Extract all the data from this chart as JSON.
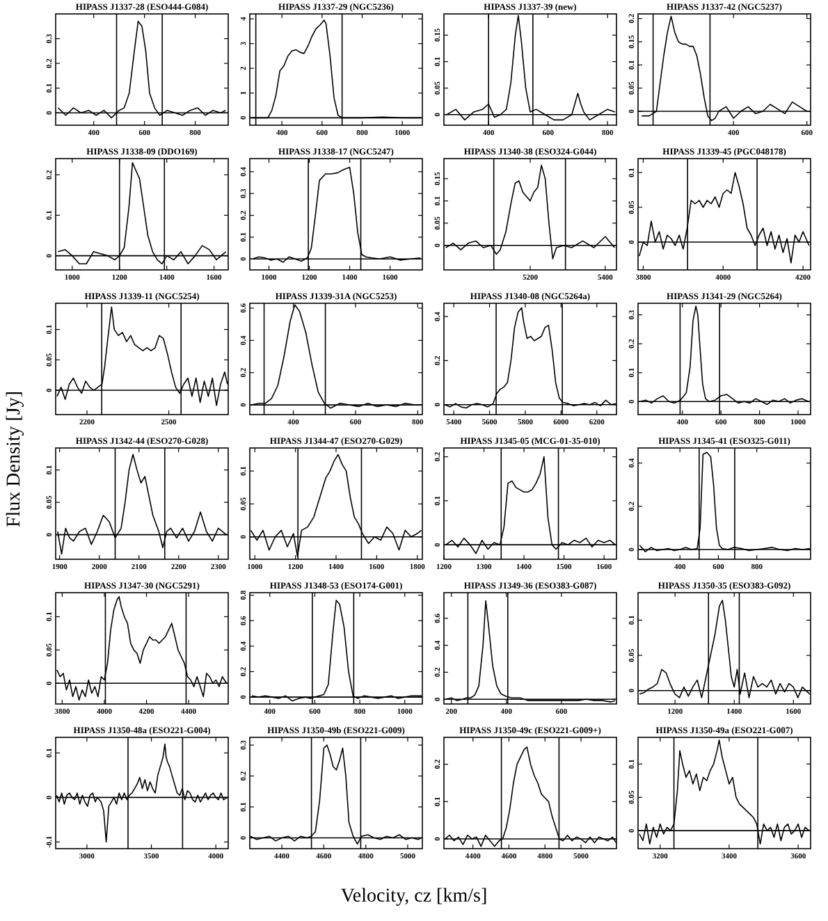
{
  "chart_data": [
    {
      "type": "line",
      "title": "HIPASS J1337-28 (ESO444-G084)",
      "xlim": [
        250,
        930
      ],
      "xticks": [
        400,
        600,
        800
      ],
      "ylim": [
        -0.05,
        0.4
      ],
      "yticks": [
        0,
        0.1,
        0.2,
        0.3
      ],
      "ref_lines": [
        {
          "axis": "x",
          "value": 490
        },
        {
          "axis": "x",
          "value": 670
        },
        {
          "axis": "y",
          "value": 0
        }
      ],
      "color": "#000000",
      "x": [
        260,
        290,
        320,
        350,
        380,
        410,
        440,
        470,
        500,
        520,
        540,
        560,
        575,
        590,
        605,
        620,
        640,
        660,
        690,
        720,
        750,
        780,
        810,
        840,
        870,
        900,
        920
      ],
      "values": [
        0.02,
        -0.01,
        0.02,
        0,
        0.01,
        -0.01,
        0.01,
        -0.02,
        0.01,
        0.02,
        0.08,
        0.25,
        0.37,
        0.35,
        0.25,
        0.08,
        0.02,
        -0.01,
        0.01,
        0,
        -0.01,
        0.01,
        0.02,
        -0.01,
        0.01,
        0,
        0.01
      ]
    },
    {
      "type": "line",
      "title": "HIPASS J1337-29 (NGC5236)",
      "xlim": [
        240,
        1100
      ],
      "xticks": [
        400,
        600,
        800,
        1000
      ],
      "ylim": [
        -0.3,
        4.2
      ],
      "yticks": [
        0,
        1,
        2,
        3,
        4
      ],
      "ref_lines": [
        {
          "axis": "x",
          "value": 270
        },
        {
          "axis": "x",
          "value": 700
        },
        {
          "axis": "y",
          "value": 0
        }
      ],
      "color": "#000000",
      "x": [
        250,
        300,
        330,
        350,
        370,
        390,
        410,
        430,
        450,
        470,
        490,
        510,
        530,
        550,
        570,
        590,
        610,
        620,
        640,
        660,
        680,
        700,
        730,
        800,
        900,
        1000,
        1090
      ],
      "values": [
        0,
        0,
        0,
        0.3,
        0.9,
        1.9,
        2.1,
        2.5,
        2.7,
        2.75,
        2.65,
        2.6,
        2.9,
        3.3,
        3.6,
        3.75,
        3.95,
        3.8,
        2.5,
        0.8,
        0.1,
        0,
        0,
        0,
        0.03,
        0,
        0
      ]
    },
    {
      "type": "line",
      "title": "HIPASS J1337-39 (new)",
      "xlim": [
        250,
        830
      ],
      "xticks": [
        400,
        600,
        800
      ],
      "ylim": [
        -0.02,
        0.19
      ],
      "yticks": [
        0,
        0.05,
        0.1,
        0.15
      ],
      "ref_lines": [
        {
          "axis": "x",
          "value": 400
        },
        {
          "axis": "x",
          "value": 549
        },
        {
          "axis": "y",
          "value": 0
        }
      ],
      "color": "#000000",
      "x": [
        260,
        290,
        320,
        350,
        380,
        400,
        420,
        440,
        460,
        475,
        490,
        500,
        510,
        525,
        540,
        560,
        590,
        620,
        650,
        680,
        700,
        710,
        720,
        740,
        770,
        800,
        825
      ],
      "values": [
        0,
        0.01,
        -0.01,
        0.005,
        0.01,
        0.02,
        -0.005,
        0,
        0.01,
        0.06,
        0.15,
        0.187,
        0.14,
        0.05,
        0.005,
        0.01,
        0,
        -0.01,
        -0.01,
        0,
        0.04,
        0.02,
        0.005,
        -0.01,
        0,
        0.01,
        0.005
      ]
    },
    {
      "type": "line",
      "title": "HIPASS J1337-42 (NGC5237)",
      "xlim": [
        140,
        610
      ],
      "xticks": [
        400,
        600
      ],
      "ylim": [
        -0.03,
        0.21
      ],
      "yticks": [
        0,
        0.05,
        0.1,
        0.15,
        0.2
      ],
      "ref_lines": [
        {
          "axis": "x",
          "value": 181
        },
        {
          "axis": "x",
          "value": 336
        },
        {
          "axis": "y",
          "value": 0
        }
      ],
      "color": "#000000",
      "x": [
        150,
        170,
        190,
        210,
        220,
        230,
        240,
        250,
        260,
        270,
        280,
        290,
        300,
        310,
        320,
        330,
        340,
        350,
        360,
        380,
        400,
        420,
        440,
        460,
        480,
        500,
        520,
        540,
        560,
        580,
        600
      ],
      "values": [
        -0.01,
        -0.01,
        0,
        0.12,
        0.17,
        0.205,
        0.17,
        0.15,
        0.145,
        0.145,
        0.14,
        0.14,
        0.12,
        0.08,
        0.03,
        -0.01,
        -0.02,
        -0.015,
        0,
        0.01,
        -0.015,
        0,
        0.01,
        -0.005,
        0,
        0.015,
        0.005,
        -0.005,
        0.02,
        0.01,
        0
      ]
    },
    {
      "type": "line",
      "title": "HIPASS J1338-09 (DDO169)",
      "xlim": [
        930,
        1660
      ],
      "xticks": [
        1000,
        1200,
        1400,
        1600
      ],
      "ylim": [
        -0.035,
        0.24
      ],
      "yticks": [
        0,
        0.1,
        0.2
      ],
      "ref_lines": [
        {
          "axis": "x",
          "value": 1200
        },
        {
          "axis": "x",
          "value": 1390
        },
        {
          "axis": "y",
          "value": 0
        }
      ],
      "color": "#000000",
      "x": [
        940,
        970,
        1000,
        1030,
        1060,
        1090,
        1120,
        1150,
        1180,
        1200,
        1220,
        1240,
        1255,
        1270,
        1285,
        1300,
        1320,
        1340,
        1360,
        1380,
        1400,
        1430,
        1460,
        1490,
        1520,
        1550,
        1580,
        1610,
        1650
      ],
      "values": [
        0.01,
        0.015,
        0,
        -0.02,
        -0.02,
        0.01,
        0.005,
        0,
        -0.01,
        0,
        0.02,
        0.12,
        0.23,
        0.21,
        0.19,
        0.13,
        0.05,
        0.01,
        -0.01,
        -0.02,
        0,
        -0.01,
        0.01,
        -0.02,
        0,
        0.025,
        0.015,
        -0.01,
        0.01
      ]
    },
    {
      "type": "line",
      "title": "HIPASS J1338-17 (NGC5247)",
      "xlim": [
        905,
        1760
      ],
      "xticks": [
        1000,
        1200,
        1400,
        1600
      ],
      "ylim": [
        -0.05,
        0.46
      ],
      "yticks": [
        0,
        0.1,
        0.2,
        0.3,
        0.4
      ],
      "ref_lines": [
        {
          "axis": "x",
          "value": 1195
        },
        {
          "axis": "x",
          "value": 1455
        },
        {
          "axis": "y",
          "value": 0
        }
      ],
      "color": "#000000",
      "x": [
        920,
        950,
        980,
        1010,
        1040,
        1070,
        1100,
        1130,
        1160,
        1190,
        1210,
        1230,
        1250,
        1280,
        1310,
        1340,
        1370,
        1400,
        1420,
        1440,
        1460,
        1480,
        1510,
        1550,
        1600,
        1650,
        1700,
        1750
      ],
      "values": [
        0,
        0.01,
        0.005,
        -0.005,
        0,
        -0.015,
        0.01,
        0,
        -0.01,
        0.005,
        0.05,
        0.2,
        0.36,
        0.39,
        0.39,
        0.395,
        0.41,
        0.42,
        0.3,
        0.12,
        0.02,
        0.01,
        0.005,
        0,
        0.01,
        -0.005,
        0,
        0.005
      ]
    },
    {
      "type": "line",
      "title": "HIPASS J1340-38 (ESO324-G044)",
      "xlim": [
        4970,
        5430
      ],
      "xticks": [
        5200,
        5400
      ],
      "ylim": [
        -0.055,
        0.195
      ],
      "yticks": [
        0,
        0.05,
        0.1,
        0.15
      ],
      "ref_lines": [
        {
          "axis": "x",
          "value": 5103
        },
        {
          "axis": "x",
          "value": 5294
        },
        {
          "axis": "y",
          "value": 0
        }
      ],
      "color": "#000000",
      "x": [
        4975,
        4995,
        5015,
        5035,
        5055,
        5075,
        5095,
        5110,
        5120,
        5135,
        5150,
        5160,
        5170,
        5180,
        5190,
        5200,
        5210,
        5220,
        5230,
        5240,
        5250,
        5260,
        5270,
        5290,
        5310,
        5340,
        5370,
        5400,
        5425
      ],
      "values": [
        -0.005,
        0.005,
        -0.01,
        0.005,
        0.01,
        -0.005,
        0,
        -0.02,
        -0.01,
        0.03,
        0.1,
        0.14,
        0.145,
        0.12,
        0.11,
        0.1,
        0.12,
        0.13,
        0.18,
        0.15,
        0.05,
        -0.03,
        -0.005,
        0,
        -0.005,
        0.01,
        -0.005,
        0.02,
        -0.005
      ]
    },
    {
      "type": "line",
      "title": "HIPASS J1339-45 (PGC048178)",
      "xlim": [
        3787,
        4219
      ],
      "xticks": [
        3800,
        4000,
        4200
      ],
      "ylim": [
        -0.04,
        0.12
      ],
      "yticks": [
        0,
        0.05,
        0.1
      ],
      "ref_lines": [
        {
          "axis": "x",
          "value": 3911
        },
        {
          "axis": "x",
          "value": 4085
        },
        {
          "axis": "y",
          "value": 0
        }
      ],
      "color": "#000000",
      "x": [
        3790,
        3800,
        3810,
        3820,
        3830,
        3840,
        3850,
        3860,
        3870,
        3880,
        3890,
        3900,
        3910,
        3920,
        3930,
        3940,
        3950,
        3960,
        3970,
        3980,
        3990,
        4000,
        4010,
        4020,
        4030,
        4040,
        4050,
        4060,
        4070,
        4080,
        4090,
        4100,
        4110,
        4120,
        4130,
        4140,
        4150,
        4160,
        4170,
        4180,
        4190,
        4200,
        4215
      ],
      "values": [
        -0.02,
        0,
        -0.005,
        0.03,
        0,
        0.015,
        -0.01,
        0.01,
        0.005,
        -0.005,
        0.01,
        -0.01,
        0.02,
        0.06,
        0.055,
        0.06,
        0.05,
        0.06,
        0.055,
        0.065,
        0.05,
        0.07,
        0.075,
        0.07,
        0.1,
        0.08,
        0.055,
        0.02,
        0.01,
        -0.005,
        0.01,
        0.02,
        -0.005,
        0.015,
        -0.01,
        0.01,
        -0.015,
        0.005,
        -0.03,
        0.01,
        0,
        0.015,
        -0.005
      ]
    },
    {
      "type": "line",
      "title": "HIPASS J1339-11 (NGC5254)",
      "xlim": [
        2085,
        2718
      ],
      "xticks": [
        2200,
        2500
      ],
      "ylim": [
        -0.04,
        0.143
      ],
      "yticks": [
        0,
        0.05,
        0.1
      ],
      "ref_lines": [
        {
          "axis": "x",
          "value": 2254
        },
        {
          "axis": "x",
          "value": 2545
        },
        {
          "axis": "y",
          "value": 0
        }
      ],
      "color": "#000000",
      "x": [
        2090,
        2105,
        2120,
        2135,
        2150,
        2165,
        2180,
        2195,
        2210,
        2225,
        2240,
        2255,
        2265,
        2275,
        2290,
        2300,
        2315,
        2330,
        2345,
        2360,
        2375,
        2390,
        2405,
        2420,
        2435,
        2450,
        2465,
        2480,
        2495,
        2510,
        2525,
        2540,
        2555,
        2570,
        2585,
        2600,
        2615,
        2630,
        2645,
        2660,
        2675,
        2690,
        2705,
        2715
      ],
      "values": [
        -0.01,
        0.005,
        -0.015,
        0.01,
        0.02,
        0.005,
        -0.005,
        0.015,
        0.005,
        0,
        0.005,
        0.01,
        0.04,
        0.08,
        0.137,
        0.1,
        0.09,
        0.095,
        0.08,
        0.09,
        0.075,
        0.07,
        0.065,
        0.07,
        0.065,
        0.07,
        0.09,
        0.085,
        0.06,
        0.03,
        0.005,
        -0.005,
        0.01,
        0.02,
        -0.01,
        0.02,
        -0.02,
        0.015,
        -0.01,
        0.02,
        -0.025,
        0.01,
        0.03,
        0.01
      ]
    },
    {
      "type": "line",
      "title": "HIPASS J1339-31A (NGC5253)",
      "xlim": [
        260,
        815
      ],
      "xticks": [
        400,
        600,
        800
      ],
      "ylim": [
        -0.06,
        0.63
      ],
      "yticks": [
        0,
        0.2,
        0.4,
        0.6
      ],
      "ref_lines": [
        {
          "axis": "x",
          "value": 306
        },
        {
          "axis": "x",
          "value": 503
        },
        {
          "axis": "y",
          "value": 0
        }
      ],
      "color": "#000000",
      "x": [
        265,
        290,
        310,
        330,
        350,
        370,
        390,
        405,
        420,
        440,
        460,
        480,
        500,
        520,
        550,
        580,
        610,
        640,
        670,
        700,
        730,
        760,
        790,
        810
      ],
      "values": [
        0,
        0.01,
        0.01,
        0.04,
        0.12,
        0.3,
        0.52,
        0.62,
        0.58,
        0.45,
        0.25,
        0.08,
        0.01,
        -0.02,
        0.01,
        0,
        -0.01,
        0.01,
        -0.01,
        0,
        -0.01,
        0.01,
        0,
        0
      ]
    },
    {
      "type": "line",
      "title": "HIPASS J1340-08 (NGC5264a)",
      "xlim": [
        5345,
        6310
      ],
      "xticks": [
        5400,
        5600,
        5800,
        6000,
        6200
      ],
      "ylim": [
        -0.045,
        0.46
      ],
      "yticks": [
        0,
        0.2,
        0.4
      ],
      "ref_lines": [
        {
          "axis": "x",
          "value": 5637
        },
        {
          "axis": "x",
          "value": 6007
        },
        {
          "axis": "y",
          "value": 0
        }
      ],
      "color": "#000000",
      "x": [
        5350,
        5380,
        5410,
        5440,
        5470,
        5500,
        5530,
        5560,
        5590,
        5620,
        5640,
        5660,
        5680,
        5700,
        5720,
        5740,
        5760,
        5780,
        5790,
        5810,
        5830,
        5850,
        5870,
        5890,
        5910,
        5930,
        5950,
        5970,
        5990,
        6010,
        6040,
        6070,
        6100,
        6130,
        6160,
        6190,
        6220,
        6250,
        6280,
        6305
      ],
      "values": [
        0,
        -0.01,
        0.005,
        -0.01,
        -0.015,
        0,
        0.005,
        0,
        -0.01,
        0.005,
        0.05,
        0.07,
        0.08,
        0.1,
        0.2,
        0.35,
        0.42,
        0.44,
        0.38,
        0.3,
        0.31,
        0.29,
        0.3,
        0.31,
        0.35,
        0.36,
        0.25,
        0.1,
        0.03,
        0.01,
        0.005,
        -0.005,
        0,
        0.005,
        0,
        0.01,
        -0.005,
        0.02,
        0,
        0.005
      ]
    },
    {
      "type": "line",
      "title": "HIPASS J1341-29 (NGC5264)",
      "xlim": [
        170,
        1065
      ],
      "xticks": [
        400,
        600,
        800,
        1000
      ],
      "ylim": [
        -0.045,
        0.34
      ],
      "yticks": [
        0,
        0.1,
        0.2,
        0.3
      ],
      "ref_lines": [
        {
          "axis": "x",
          "value": 388
        },
        {
          "axis": "x",
          "value": 593
        },
        {
          "axis": "y",
          "value": 0
        }
      ],
      "color": "#000000",
      "x": [
        180,
        210,
        240,
        270,
        300,
        330,
        360,
        390,
        420,
        440,
        455,
        470,
        480,
        490,
        505,
        520,
        540,
        570,
        600,
        630,
        660,
        690,
        720,
        750,
        780,
        810,
        840,
        870,
        900,
        930,
        960,
        990,
        1020,
        1055
      ],
      "values": [
        0,
        0.005,
        -0.005,
        0.01,
        0.02,
        0,
        -0.005,
        0.005,
        0.03,
        0.12,
        0.28,
        0.33,
        0.3,
        0.2,
        0.06,
        0.01,
        0,
        0.005,
        0.02,
        0.025,
        0.01,
        -0.005,
        0,
        -0.005,
        0.01,
        0,
        -0.01,
        0.005,
        0,
        0.01,
        -0.005,
        0.005,
        0.01,
        0
      ]
    },
    {
      "type": "line",
      "title": "HIPASS J1342-44 (ESO270-G028)",
      "xlim": [
        1890,
        2325
      ],
      "xticks": [
        1900,
        2000,
        2100,
        2200,
        2300
      ],
      "ylim": [
        -0.038,
        0.134
      ],
      "yticks": [
        0,
        0.05,
        0.1
      ],
      "ref_lines": [
        {
          "axis": "x",
          "value": 2040
        },
        {
          "axis": "x",
          "value": 2165
        },
        {
          "axis": "y",
          "value": 0
        }
      ],
      "color": "#000000",
      "x": [
        1895,
        1905,
        1915,
        1925,
        1935,
        1950,
        1965,
        1980,
        1995,
        2010,
        2025,
        2040,
        2055,
        2065,
        2075,
        2085,
        2095,
        2105,
        2115,
        2125,
        2135,
        2150,
        2160,
        2170,
        2180,
        2195,
        2210,
        2225,
        2240,
        2255,
        2270,
        2285,
        2300,
        2320
      ],
      "values": [
        0.005,
        -0.03,
        0.01,
        -0.005,
        -0.01,
        0.005,
        0.01,
        -0.015,
        0.005,
        0.03,
        0.02,
        -0.005,
        0.01,
        0.05,
        0.1,
        0.124,
        0.1,
        0.08,
        0.09,
        0.06,
        0.03,
        0.005,
        -0.02,
        0.005,
        0.01,
        -0.005,
        0.01,
        -0.01,
        0.005,
        0.035,
        0.005,
        -0.01,
        0.01,
        0
      ]
    },
    {
      "type": "line",
      "title": "HIPASS J1344-47 (ESO270-G029)",
      "xlim": [
        975,
        1825
      ],
      "xticks": [
        1000,
        1200,
        1400,
        1600,
        1800
      ],
      "ylim": [
        -0.034,
        0.135
      ],
      "yticks": [
        0,
        0.05,
        0.1
      ],
      "ref_lines": [
        {
          "axis": "x",
          "value": 1212
        },
        {
          "axis": "x",
          "value": 1525
        },
        {
          "axis": "y",
          "value": 0
        }
      ],
      "color": "#000000",
      "x": [
        980,
        1010,
        1040,
        1070,
        1100,
        1130,
        1160,
        1190,
        1210,
        1230,
        1260,
        1290,
        1320,
        1350,
        1370,
        1390,
        1410,
        1430,
        1450,
        1470,
        1490,
        1510,
        1530,
        1560,
        1590,
        1620,
        1650,
        1680,
        1710,
        1740,
        1770,
        1800,
        1820
      ],
      "values": [
        0.01,
        -0.005,
        0.01,
        -0.02,
        0,
        0.01,
        -0.015,
        0.005,
        -0.03,
        0.01,
        0.015,
        0.03,
        0.06,
        0.09,
        0.1,
        0.115,
        0.125,
        0.11,
        0.1,
        0.06,
        0.03,
        0.02,
        0.005,
        -0.01,
        0,
        -0.005,
        0.015,
        0.005,
        -0.02,
        0.01,
        0,
        0.005,
        0.01
      ]
    },
    {
      "type": "line",
      "title": "HIPASS J1345-05 (MCG-01-35-010)",
      "xlim": [
        1200,
        1631
      ],
      "xticks": [
        1200,
        1300,
        1400,
        1500,
        1600
      ],
      "ylim": [
        -0.033,
        0.22
      ],
      "yticks": [
        0,
        0.1,
        0.2
      ],
      "ref_lines": [
        {
          "axis": "x",
          "value": 1343
        },
        {
          "axis": "x",
          "value": 1486
        },
        {
          "axis": "y",
          "value": 0
        }
      ],
      "color": "#000000",
      "x": [
        1205,
        1220,
        1235,
        1250,
        1265,
        1280,
        1295,
        1310,
        1325,
        1340,
        1350,
        1360,
        1370,
        1380,
        1390,
        1400,
        1410,
        1420,
        1430,
        1440,
        1450,
        1460,
        1470,
        1480,
        1495,
        1510,
        1525,
        1540,
        1555,
        1570,
        1585,
        1600,
        1615,
        1628
      ],
      "values": [
        0,
        0.01,
        -0.005,
        0.015,
        0,
        -0.02,
        0.01,
        -0.01,
        0.005,
        0,
        0.04,
        0.14,
        0.145,
        0.13,
        0.125,
        0.12,
        0.12,
        0.125,
        0.14,
        0.16,
        0.2,
        0.06,
        0,
        -0.01,
        0.005,
        0,
        0.01,
        0.005,
        0.015,
        -0.005,
        0.01,
        0.005,
        0.01,
        0
      ]
    },
    {
      "type": "line",
      "title": "HIPASS J1345-41 (ESO325-G011)",
      "xlim": [
        182,
        1080
      ],
      "xticks": [
        400,
        600,
        800
      ],
      "ylim": [
        -0.045,
        0.47
      ],
      "yticks": [
        0,
        0.2,
        0.4
      ],
      "ref_lines": [
        {
          "axis": "x",
          "value": 500
        },
        {
          "axis": "x",
          "value": 685
        },
        {
          "axis": "y",
          "value": 0
        }
      ],
      "color": "#000000",
      "x": [
        190,
        220,
        250,
        280,
        310,
        340,
        370,
        400,
        430,
        460,
        490,
        505,
        520,
        540,
        560,
        575,
        590,
        605,
        620,
        650,
        680,
        720,
        760,
        800,
        840,
        880,
        920,
        960,
        1000,
        1040,
        1075
      ],
      "values": [
        0.02,
        -0.01,
        0.01,
        -0.005,
        0,
        0.005,
        -0.005,
        0,
        0.01,
        0,
        0.005,
        0.1,
        0.44,
        0.45,
        0.43,
        0.3,
        0.1,
        0.02,
        0.005,
        0,
        0.01,
        0.005,
        -0.005,
        0,
        0.005,
        0.01,
        0,
        -0.005,
        0.005,
        0,
        0.005
      ]
    },
    {
      "type": "line",
      "title": "HIPASS J1347-30 (NGC5291)",
      "xlim": [
        3769,
        4588
      ],
      "xticks": [
        3800,
        4000,
        4200,
        4400
      ],
      "ylim": [
        -0.031,
        0.136
      ],
      "yticks": [
        0,
        0.05,
        0.1
      ],
      "ref_lines": [
        {
          "axis": "x",
          "value": 4005
        },
        {
          "axis": "x",
          "value": 4388
        },
        {
          "axis": "y",
          "value": 0
        }
      ],
      "color": "#000000",
      "x": [
        3775,
        3790,
        3805,
        3820,
        3835,
        3850,
        3865,
        3880,
        3895,
        3910,
        3925,
        3940,
        3955,
        3970,
        3985,
        4000,
        4015,
        4030,
        4045,
        4060,
        4070,
        4080,
        4095,
        4110,
        4125,
        4140,
        4155,
        4170,
        4185,
        4200,
        4215,
        4230,
        4245,
        4260,
        4275,
        4290,
        4305,
        4320,
        4335,
        4350,
        4365,
        4380,
        4395,
        4410,
        4425,
        4440,
        4455,
        4470,
        4485,
        4500,
        4515,
        4530,
        4545,
        4560,
        4580
      ],
      "values": [
        0.02,
        0.01,
        0.015,
        -0.01,
        0.005,
        -0.02,
        -0.005,
        -0.025,
        -0.01,
        -0.02,
        0.005,
        -0.015,
        -0.005,
        -0.02,
        0.01,
        0.005,
        0.03,
        0.08,
        0.11,
        0.125,
        0.13,
        0.115,
        0.1,
        0.09,
        0.06,
        0.05,
        0.045,
        0.03,
        0.05,
        0.06,
        0.07,
        0.065,
        0.065,
        0.06,
        0.065,
        0.07,
        0.08,
        0.09,
        0.07,
        0.05,
        0.04,
        0.03,
        0.01,
        0.005,
        -0.005,
        0.01,
        -0.005,
        -0.02,
        0.015,
        0.01,
        0,
        0.005,
        -0.005,
        0.01,
        0
      ]
    },
    {
      "type": "line",
      "title": "HIPASS J1348-53 (ESO174-G001)",
      "xlim": [
        311,
        1078
      ],
      "xticks": [
        400,
        600,
        800,
        1000
      ],
      "ylim": [
        -0.054,
        0.82
      ],
      "yticks": [
        0,
        0.2,
        0.4,
        0.6,
        0.8
      ],
      "ref_lines": [
        {
          "axis": "x",
          "value": 589
        },
        {
          "axis": "x",
          "value": 773
        },
        {
          "axis": "y",
          "value": 0
        }
      ],
      "color": "#000000",
      "x": [
        320,
        350,
        380,
        410,
        440,
        470,
        500,
        530,
        560,
        580,
        600,
        620,
        640,
        660,
        680,
        695,
        710,
        730,
        750,
        770,
        790,
        820,
        850,
        880,
        910,
        940,
        970,
        1000,
        1030,
        1060,
        1075
      ],
      "values": [
        0.01,
        0,
        0.01,
        0,
        -0.01,
        0.01,
        -0.03,
        -0.01,
        0,
        -0.01,
        0,
        0.01,
        0.02,
        0.1,
        0.5,
        0.76,
        0.73,
        0.55,
        0.2,
        0.01,
        -0.01,
        0.01,
        0,
        -0.01,
        0,
        0.01,
        -0.01,
        0,
        0.01,
        0.01,
        0.01
      ]
    },
    {
      "type": "line",
      "title": "HIPASS J1349-36 (ESO383-G087)",
      "xlim": [
        173,
        800
      ],
      "xticks": [
        200,
        400,
        600
      ],
      "ylim": [
        -0.035,
        0.79
      ],
      "yticks": [
        0,
        0.2,
        0.4,
        0.6
      ],
      "ref_lines": [
        {
          "axis": "x",
          "value": 260
        },
        {
          "axis": "x",
          "value": 405
        },
        {
          "axis": "y",
          "value": 0
        }
      ],
      "color": "#000000",
      "x": [
        180,
        200,
        220,
        240,
        255,
        270,
        285,
        300,
        315,
        325,
        335,
        350,
        365,
        380,
        400,
        420,
        450,
        480,
        510,
        540,
        570,
        600,
        630,
        660,
        690,
        720,
        750,
        780,
        795
      ],
      "values": [
        0,
        0.01,
        -0.01,
        0,
        0.01,
        0.01,
        0.03,
        0.1,
        0.4,
        0.73,
        0.55,
        0.25,
        0.1,
        0.04,
        0.02,
        0.01,
        0.01,
        -0.01,
        -0.01,
        -0.01,
        -0.01,
        -0.01,
        -0.01,
        -0.01,
        0,
        -0.01,
        -0.01,
        -0.02,
        -0.01
      ]
    },
    {
      "type": "line",
      "title": "HIPASS J1350-35 (ESO383-G092)",
      "xlim": [
        1075,
        1658
      ],
      "xticks": [
        1200,
        1400,
        1600
      ],
      "ylim": [
        -0.019,
        0.139
      ],
      "yticks": [
        0,
        0.05,
        0.1
      ],
      "ref_lines": [
        {
          "axis": "x",
          "value": 1313
        },
        {
          "axis": "x",
          "value": 1417
        },
        {
          "axis": "y",
          "value": 0
        }
      ],
      "color": "#000000",
      "x": [
        1080,
        1095,
        1110,
        1125,
        1140,
        1155,
        1170,
        1185,
        1200,
        1215,
        1230,
        1245,
        1260,
        1275,
        1290,
        1305,
        1320,
        1335,
        1350,
        1360,
        1370,
        1380,
        1390,
        1400,
        1410,
        1420,
        1435,
        1450,
        1465,
        1480,
        1495,
        1510,
        1525,
        1540,
        1555,
        1570,
        1585,
        1600,
        1615,
        1630,
        1655
      ],
      "values": [
        -0.005,
        -0.003,
        0.002,
        0.005,
        0.01,
        0.03,
        0.025,
        0.008,
        -0.005,
        -0.01,
        0.005,
        -0.008,
        0.005,
        0.015,
        -0.01,
        0.02,
        0.05,
        0.08,
        0.12,
        0.128,
        0.1,
        0.06,
        0.02,
        0.005,
        0.03,
        -0.005,
        0.025,
        -0.01,
        0.02,
        0.005,
        0.01,
        0.005,
        0.015,
        -0.005,
        0.01,
        -0.002,
        0.01,
        0.005,
        -0.01,
        0.005,
        -0.005
      ]
    },
    {
      "type": "line",
      "title": "HIPASS J1350-48a (ESO221-G004)",
      "xlim": [
        2758,
        4096
      ],
      "xticks": [
        3000,
        3500,
        4000
      ],
      "ylim": [
        -0.115,
        0.135
      ],
      "yticks": [
        -0.1,
        0,
        0.1
      ],
      "ref_lines": [
        {
          "axis": "x",
          "value": 3319
        },
        {
          "axis": "x",
          "value": 3742
        },
        {
          "axis": "y",
          "value": 0
        }
      ],
      "color": "#000000",
      "x": [
        2765,
        2785,
        2805,
        2825,
        2845,
        2865,
        2885,
        2905,
        2925,
        2945,
        2965,
        2985,
        3005,
        3025,
        3045,
        3065,
        3080,
        3095,
        3110,
        3130,
        3150,
        3170,
        3190,
        3210,
        3230,
        3250,
        3270,
        3290,
        3310,
        3330,
        3350,
        3370,
        3390,
        3410,
        3430,
        3450,
        3470,
        3490,
        3510,
        3530,
        3550,
        3570,
        3590,
        3605,
        3615,
        3625,
        3640,
        3660,
        3680,
        3700,
        3720,
        3740,
        3760,
        3780,
        3800,
        3820,
        3840,
        3860,
        3880,
        3900,
        3920,
        3940,
        3960,
        3980,
        4000,
        4020,
        4040,
        4060,
        4090
      ],
      "values": [
        0.005,
        -0.01,
        0.01,
        -0.015,
        0.005,
        0.01,
        0,
        -0.005,
        0.01,
        -0.015,
        0.005,
        -0.01,
        -0.02,
        0.005,
        0.01,
        -0.01,
        0,
        -0.005,
        -0.01,
        -0.03,
        -0.1,
        -0.02,
        -0.01,
        0,
        -0.015,
        0.01,
        -0.005,
        0.01,
        -0.005,
        0.005,
        0.01,
        0.02,
        0.03,
        0.045,
        0.02,
        0.04,
        0.015,
        0.035,
        0.02,
        0.01,
        0.05,
        0.07,
        0.09,
        0.12,
        0.09,
        0.08,
        0.07,
        0.05,
        0.03,
        0.01,
        0.005,
        0.02,
        -0.005,
        0.015,
        0.01,
        -0.005,
        -0.01,
        0.005,
        -0.01,
        0,
        0.01,
        -0.005,
        0.005,
        0.01,
        0,
        -0.005,
        0.01,
        -0.005,
        0
      ]
    },
    {
      "type": "line",
      "title": "HIPASS J1350-49b (ESO221-G009)",
      "xlim": [
        4247,
        5070
      ],
      "xticks": [
        4400,
        4600,
        4800,
        5000
      ],
      "ylim": [
        -0.035,
        0.325
      ],
      "yticks": [
        0,
        0.1,
        0.2,
        0.3
      ],
      "ref_lines": [
        {
          "axis": "x",
          "value": 4541
        },
        {
          "axis": "x",
          "value": 4776
        },
        {
          "axis": "y",
          "value": 0
        }
      ],
      "color": "#000000",
      "x": [
        4250,
        4280,
        4310,
        4340,
        4370,
        4400,
        4430,
        4460,
        4490,
        4520,
        4540,
        4560,
        4580,
        4600,
        4615,
        4630,
        4645,
        4660,
        4675,
        4690,
        4705,
        4720,
        4740,
        4760,
        4780,
        4810,
        4840,
        4870,
        4900,
        4930,
        4960,
        4990,
        5020,
        5050,
        5065
      ],
      "values": [
        0.005,
        -0.005,
        0,
        0.005,
        -0.01,
        0,
        0.005,
        -0.01,
        0.005,
        0,
        0.005,
        0.02,
        0.12,
        0.29,
        0.3,
        0.27,
        0.23,
        0.22,
        0.25,
        0.29,
        0.2,
        0.05,
        0.005,
        -0.02,
        0.005,
        0.01,
        0,
        -0.005,
        0.005,
        0,
        0.01,
        -0.005,
        0,
        -0.005,
        0
      ]
    },
    {
      "type": "line",
      "title": "HIPASS J1350-49c (ESO221-G009+)",
      "xlim": [
        4239,
        5197
      ],
      "xticks": [
        4400,
        4600,
        4800,
        5000
      ],
      "ylim": [
        -0.026,
        0.272
      ],
      "yticks": [
        0,
        0.1,
        0.2
      ],
      "ref_lines": [
        {
          "axis": "x",
          "value": 4558
        },
        {
          "axis": "x",
          "value": 4878
        },
        {
          "axis": "y",
          "value": 0
        }
      ],
      "color": "#000000",
      "x": [
        4245,
        4270,
        4295,
        4320,
        4345,
        4370,
        4395,
        4420,
        4445,
        4470,
        4495,
        4520,
        4545,
        4565,
        4585,
        4605,
        4625,
        4645,
        4665,
        4685,
        4700,
        4720,
        4740,
        4760,
        4780,
        4800,
        4820,
        4840,
        4860,
        4880,
        4900,
        4925,
        4950,
        4975,
        5000,
        5025,
        5050,
        5075,
        5100,
        5125,
        5150,
        5175,
        5195
      ],
      "values": [
        0,
        0.01,
        -0.005,
        0.005,
        -0.015,
        0.01,
        0,
        0.005,
        -0.02,
        0.01,
        -0.005,
        -0.02,
        -0.005,
        0,
        0.03,
        0.08,
        0.15,
        0.2,
        0.22,
        0.24,
        0.246,
        0.2,
        0.17,
        0.15,
        0.12,
        0.11,
        0.1,
        0.06,
        0.03,
        0,
        -0.005,
        0.01,
        -0.005,
        0.005,
        0,
        -0.01,
        0.005,
        -0.01,
        0.005,
        0,
        -0.005,
        0.005,
        -0.01
      ]
    },
    {
      "type": "line",
      "title": "HIPASS J1350-49a (ESO221-G007)",
      "xlim": [
        3136,
        3636
      ],
      "xticks": [
        3200,
        3400,
        3600
      ],
      "ylim": [
        -0.027,
        0.14
      ],
      "yticks": [
        0,
        0.05,
        0.1
      ],
      "ref_lines": [
        {
          "axis": "x",
          "value": 3240
        },
        {
          "axis": "x",
          "value": 3483
        },
        {
          "axis": "y",
          "value": 0
        }
      ],
      "color": "#000000",
      "x": [
        3140,
        3150,
        3160,
        3170,
        3180,
        3190,
        3200,
        3210,
        3220,
        3230,
        3240,
        3250,
        3257,
        3265,
        3275,
        3285,
        3295,
        3305,
        3315,
        3325,
        3335,
        3345,
        3355,
        3365,
        3371,
        3380,
        3390,
        3400,
        3410,
        3420,
        3430,
        3440,
        3450,
        3460,
        3470,
        3480,
        3490,
        3500,
        3510,
        3520,
        3530,
        3540,
        3550,
        3560,
        3570,
        3580,
        3590,
        3600,
        3610,
        3620,
        3632
      ],
      "values": [
        -0.005,
        -0.015,
        0.01,
        -0.02,
        0.005,
        -0.01,
        0.01,
        -0.005,
        0.005,
        0,
        0.01,
        0.06,
        0.12,
        0.1,
        0.08,
        0.09,
        0.07,
        0.085,
        0.06,
        0.08,
        0.075,
        0.09,
        0.1,
        0.12,
        0.136,
        0.11,
        0.09,
        0.07,
        0.08,
        0.05,
        0.04,
        0.035,
        0.03,
        0.025,
        0.02,
        0.01,
        -0.02,
        0.01,
        0,
        0.005,
        -0.01,
        0.01,
        -0.015,
        0.005,
        0.01,
        -0.005,
        0,
        0.01,
        -0.01,
        0.005,
        0
      ]
    },
    {
      "type": "other",
      "xlabel": "Velocity, cz [km/s]",
      "ylabel": "Flux Density [Jy]"
    }
  ]
}
